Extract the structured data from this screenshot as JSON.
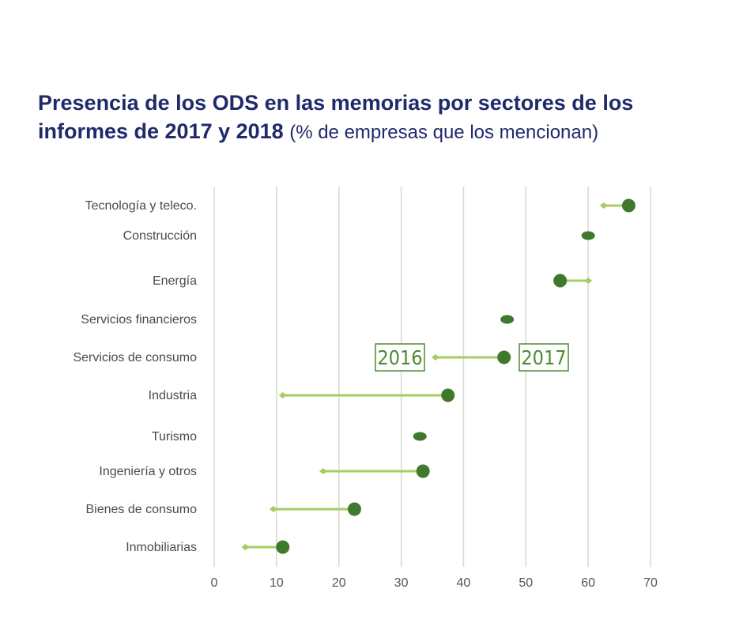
{
  "title": {
    "main": "Presencia de los ODS en las memorias por sectores de los informes de 2017 y 2018",
    "sub": "(% de empresas que los mencionan)"
  },
  "chart_data": {
    "type": "dumbbell",
    "title": "Presencia de los ODS en las memorias por sectores de los informes de 2017 y 2018 (% de empresas que los mencionan)",
    "xlim": [
      0,
      70
    ],
    "xticks": [
      0,
      10,
      20,
      30,
      40,
      50,
      60,
      70
    ],
    "grid": true,
    "categories": [
      "Tecnología y teleco.",
      "Construcción",
      "Energía",
      "Servicios financieros",
      "Servicios de consumo",
      "Industria",
      "Turismo",
      "Ingeniería y otros",
      "Bienes de consumo",
      "Inmobiliarias"
    ],
    "series": [
      {
        "name": "2016",
        "values": [
          62.5,
          60,
          60,
          47,
          35.5,
          11,
          33,
          17.5,
          9.5,
          5
        ]
      },
      {
        "name": "2017",
        "values": [
          66.5,
          60,
          55.5,
          47,
          46.5,
          37.5,
          33,
          33.5,
          22.5,
          11
        ]
      }
    ],
    "annotations": {
      "left_label": "2016",
      "right_label": "2017"
    },
    "colors": {
      "start": "#a8cc63",
      "end": "#3f7a2c",
      "grid": "#d9d9cf",
      "title": "#1f2a6b"
    }
  }
}
